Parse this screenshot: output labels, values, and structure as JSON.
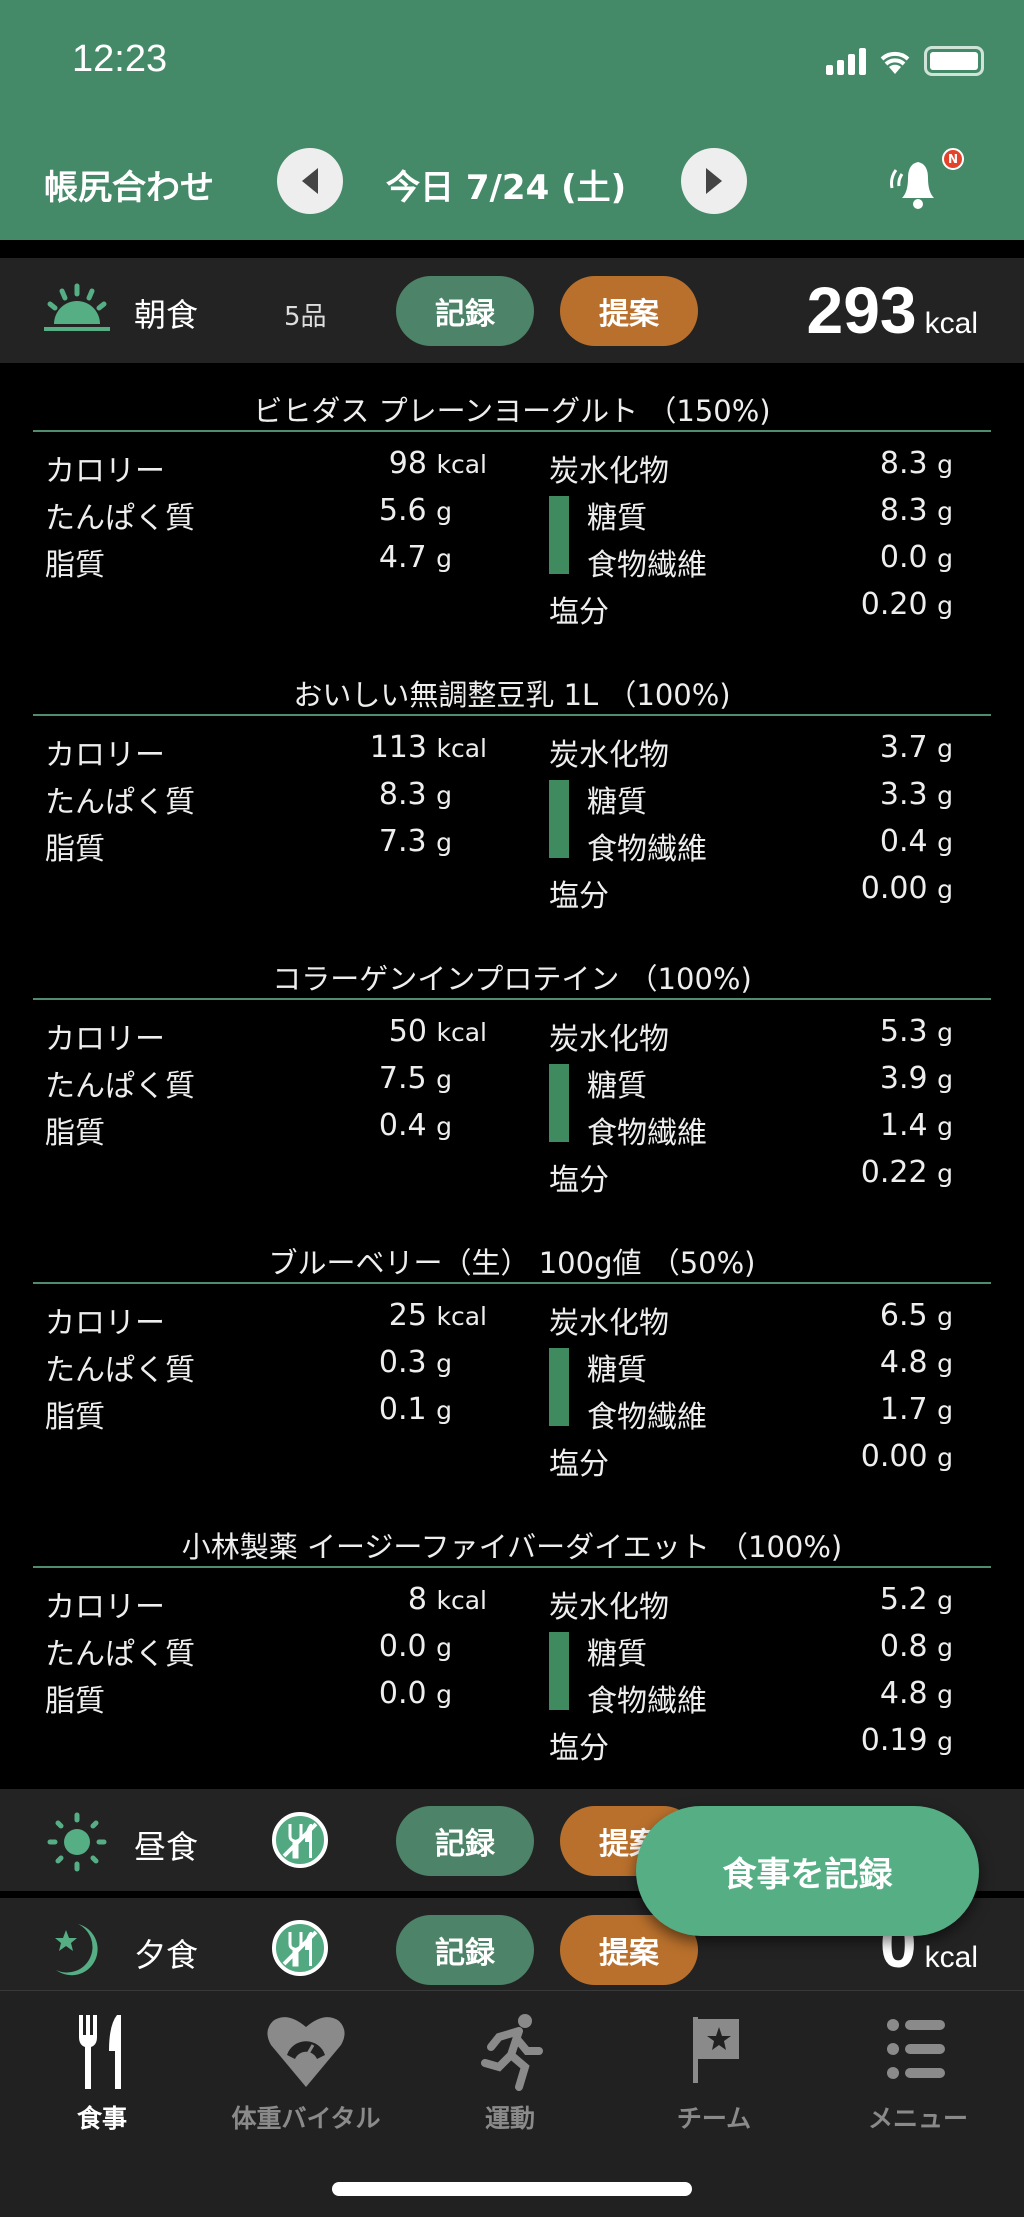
{
  "status": {
    "time": "12:23"
  },
  "header": {
    "title": "帳尻合わせ",
    "date": "今日 7/24 (土)",
    "badge": "N"
  },
  "breakfast": {
    "name": "朝食",
    "count": "5品",
    "record": "記録",
    "suggest": "提案",
    "kcal": "293",
    "unit": "kcal"
  },
  "labels": {
    "cal": "カロリー",
    "protein": "たんぱく質",
    "fat": "脂質",
    "carb": "炭水化物",
    "sugar": "糖質",
    "fiber": "食物繊維",
    "salt": "塩分",
    "kcal": "kcal",
    "g": "g"
  },
  "foods": [
    {
      "title": "ビヒダス プレーンヨーグルト （150%)",
      "cal": "98",
      "protein": "5.6",
      "fat": "4.7",
      "carb": "8.3",
      "sugar": "8.3",
      "fiber": "0.0",
      "salt": "0.20"
    },
    {
      "title": "おいしい無調整豆乳 1L （100%)",
      "cal": "113",
      "protein": "8.3",
      "fat": "7.3",
      "carb": "3.7",
      "sugar": "3.3",
      "fiber": "0.4",
      "salt": "0.00"
    },
    {
      "title": "コラーゲンインプロテイン （100%)",
      "cal": "50",
      "protein": "7.5",
      "fat": "0.4",
      "carb": "5.3",
      "sugar": "3.9",
      "fiber": "1.4",
      "salt": "0.22"
    },
    {
      "title": "ブルーベリー（生） 100g値 （50%)",
      "cal": "25",
      "protein": "0.3",
      "fat": "0.1",
      "carb": "6.5",
      "sugar": "4.8",
      "fiber": "1.7",
      "salt": "0.00"
    },
    {
      "title": "小林製薬 イージーファイバーダイエット （100%)",
      "cal": "8",
      "protein": "0.0",
      "fat": "0.0",
      "carb": "5.2",
      "sugar": "0.8",
      "fiber": "4.8",
      "salt": "0.19"
    }
  ],
  "lunch": {
    "name": "昼食",
    "record": "記録",
    "suggest": "提案"
  },
  "dinner": {
    "name": "夕食",
    "record": "記録",
    "suggest": "提案",
    "kcal": "0",
    "unit": "kcal"
  },
  "fab": "食事を記録",
  "tabs": [
    {
      "label": "食事"
    },
    {
      "label": "体重バイタル"
    },
    {
      "label": "運動"
    },
    {
      "label": "チーム"
    },
    {
      "label": "メニュー"
    }
  ],
  "colors": {
    "header": "#458a68",
    "record": "#4d8368",
    "suggest": "#b9702c",
    "fab": "#56ae85"
  }
}
